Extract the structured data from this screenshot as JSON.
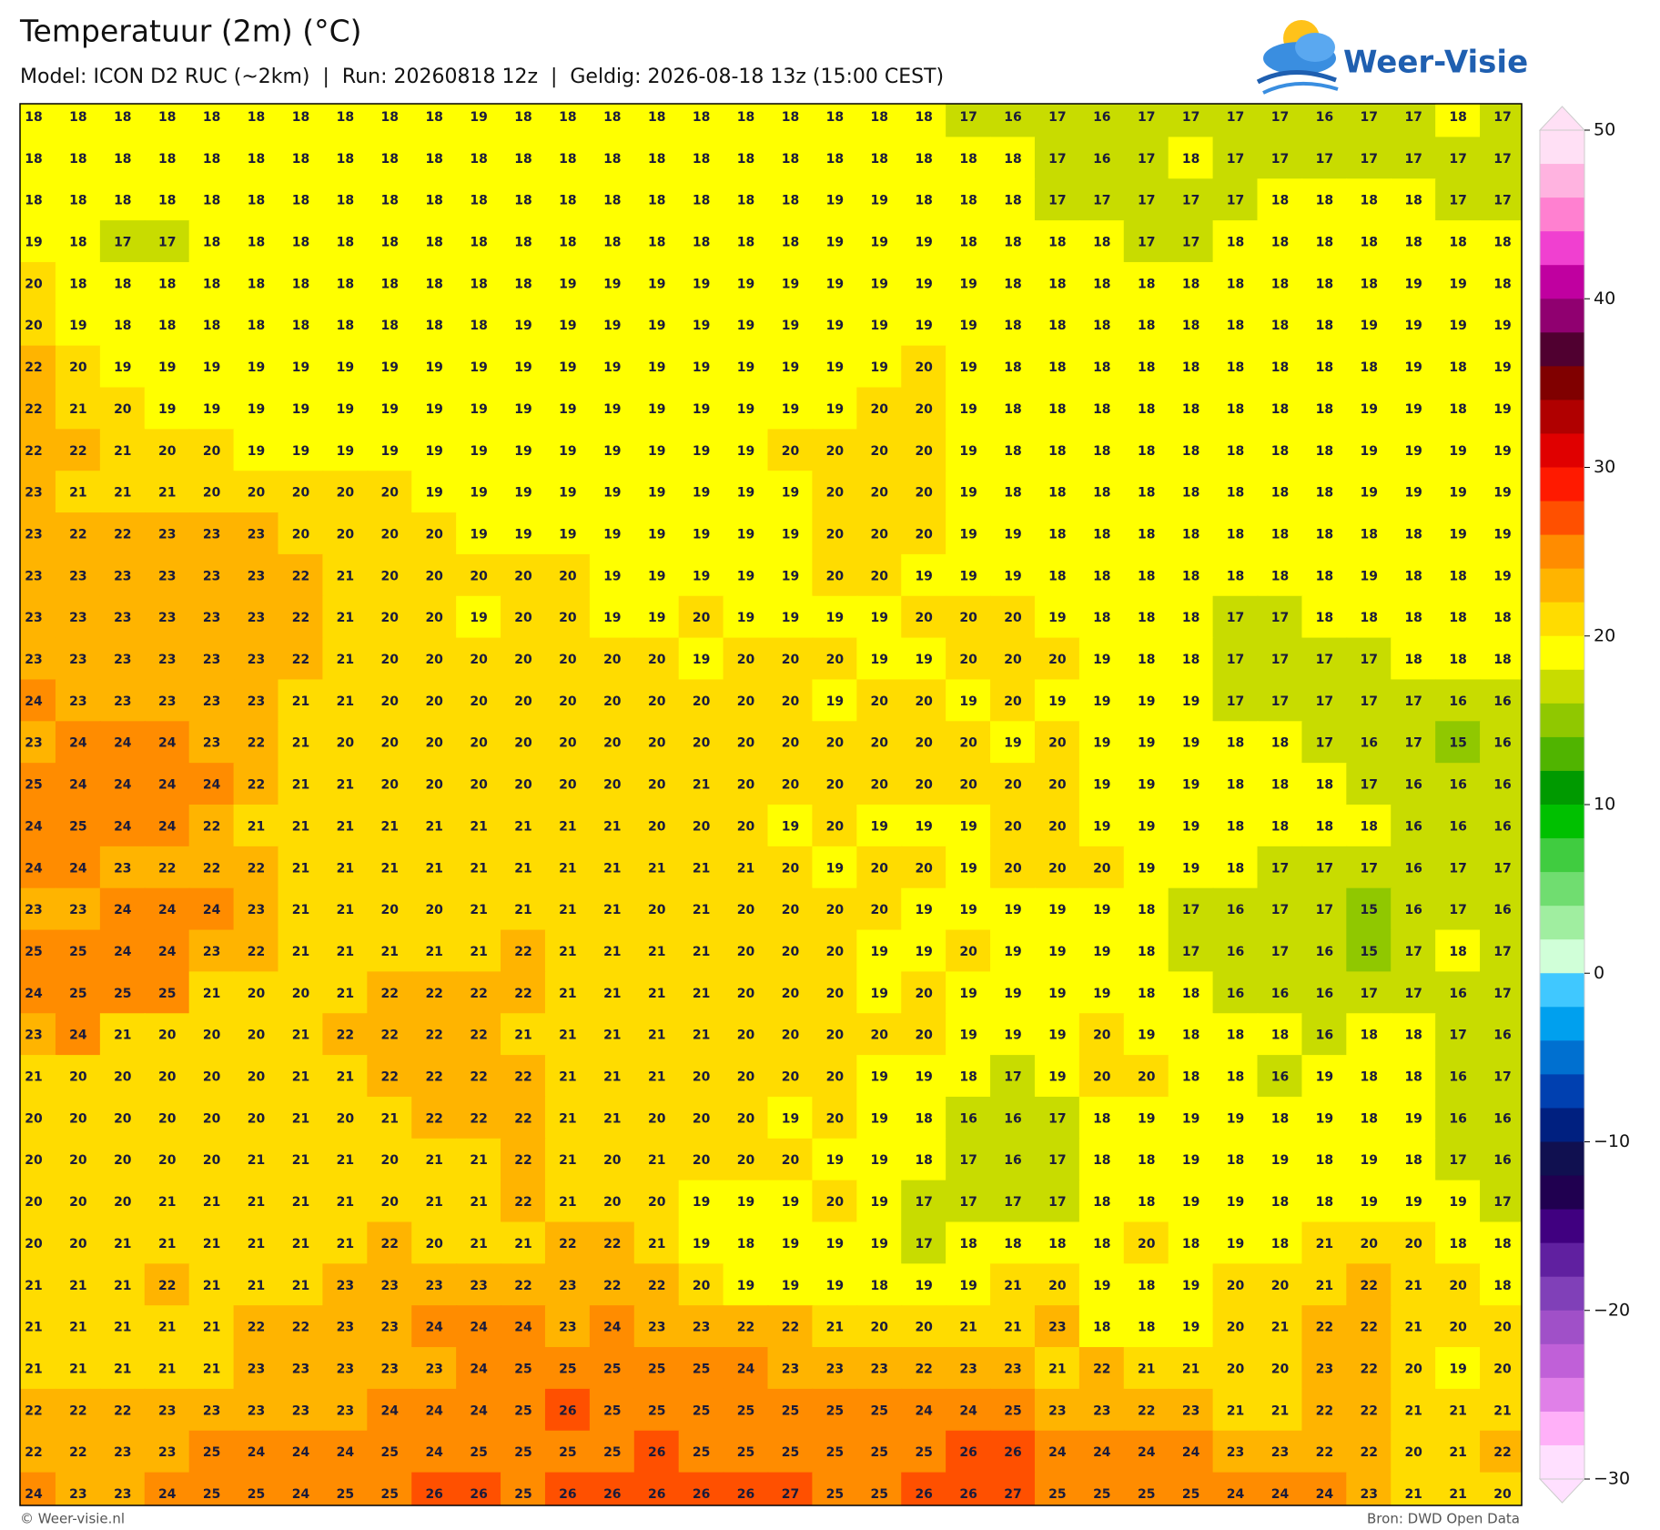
{
  "header": {
    "title": "Temperatuur (2m) (°C)",
    "subtitle": "Model: ICON D2 RUC (~2km)  |  Run: 20260818 12z  |  Geldig: 2026-08-18 13z (15:00 CEST)",
    "logo": "Weer-Visie"
  },
  "map": {
    "rows": [
      [
        18,
        18,
        18,
        18,
        18,
        18,
        18,
        18,
        18,
        18,
        19,
        18,
        18,
        18,
        18,
        18,
        18,
        18,
        18,
        18,
        18,
        17,
        16,
        17,
        16,
        17,
        17,
        17,
        17,
        16,
        17,
        17,
        18,
        17
      ],
      [
        18,
        18,
        18,
        18,
        18,
        18,
        18,
        18,
        18,
        18,
        18,
        18,
        18,
        18,
        18,
        18,
        18,
        18,
        18,
        18,
        18,
        18,
        18,
        17,
        16,
        17,
        18,
        17,
        17,
        17,
        17,
        17,
        17,
        17
      ],
      [
        18,
        18,
        18,
        18,
        18,
        18,
        18,
        18,
        18,
        18,
        18,
        18,
        18,
        18,
        18,
        18,
        18,
        18,
        19,
        19,
        18,
        18,
        18,
        17,
        17,
        17,
        17,
        17,
        18,
        18,
        18,
        18,
        17,
        17
      ],
      [
        19,
        18,
        17,
        17,
        18,
        18,
        18,
        18,
        18,
        18,
        18,
        18,
        18,
        18,
        18,
        18,
        18,
        18,
        19,
        19,
        19,
        18,
        18,
        18,
        18,
        17,
        17,
        18,
        18,
        18,
        18,
        18,
        18,
        18
      ],
      [
        20,
        18,
        18,
        18,
        18,
        18,
        18,
        18,
        18,
        18,
        18,
        18,
        19,
        19,
        19,
        19,
        19,
        19,
        19,
        19,
        19,
        19,
        18,
        18,
        18,
        18,
        18,
        18,
        18,
        18,
        18,
        19,
        19,
        18
      ],
      [
        20,
        19,
        18,
        18,
        18,
        18,
        18,
        18,
        18,
        18,
        18,
        19,
        19,
        19,
        19,
        19,
        19,
        19,
        19,
        19,
        19,
        19,
        18,
        18,
        18,
        18,
        18,
        18,
        18,
        18,
        19,
        19,
        19,
        19
      ],
      [
        22,
        20,
        19,
        19,
        19,
        19,
        19,
        19,
        19,
        19,
        19,
        19,
        19,
        19,
        19,
        19,
        19,
        19,
        19,
        19,
        20,
        19,
        18,
        18,
        18,
        18,
        18,
        18,
        18,
        18,
        18,
        19,
        18,
        19
      ],
      [
        22,
        21,
        20,
        19,
        19,
        19,
        19,
        19,
        19,
        19,
        19,
        19,
        19,
        19,
        19,
        19,
        19,
        19,
        19,
        20,
        20,
        19,
        18,
        18,
        18,
        18,
        18,
        18,
        18,
        18,
        19,
        19,
        18,
        19
      ],
      [
        22,
        22,
        21,
        20,
        20,
        19,
        19,
        19,
        19,
        19,
        19,
        19,
        19,
        19,
        19,
        19,
        19,
        20,
        20,
        20,
        20,
        19,
        18,
        18,
        18,
        18,
        18,
        18,
        18,
        18,
        19,
        19,
        19,
        19
      ],
      [
        23,
        21,
        21,
        21,
        20,
        20,
        20,
        20,
        20,
        19,
        19,
        19,
        19,
        19,
        19,
        19,
        19,
        19,
        20,
        20,
        20,
        19,
        18,
        18,
        18,
        18,
        18,
        18,
        18,
        18,
        19,
        19,
        19,
        19
      ],
      [
        23,
        22,
        22,
        23,
        23,
        23,
        20,
        20,
        20,
        20,
        19,
        19,
        19,
        19,
        19,
        19,
        19,
        19,
        20,
        20,
        20,
        19,
        19,
        18,
        18,
        18,
        18,
        18,
        18,
        18,
        18,
        18,
        19,
        19
      ],
      [
        23,
        23,
        23,
        23,
        23,
        23,
        22,
        21,
        20,
        20,
        20,
        20,
        20,
        19,
        19,
        19,
        19,
        19,
        20,
        20,
        19,
        19,
        19,
        18,
        18,
        18,
        18,
        18,
        18,
        18,
        19,
        18,
        18,
        19
      ],
      [
        23,
        23,
        23,
        23,
        23,
        23,
        22,
        21,
        20,
        20,
        19,
        20,
        20,
        19,
        19,
        20,
        19,
        19,
        19,
        19,
        20,
        20,
        20,
        19,
        18,
        18,
        18,
        17,
        17,
        18,
        18,
        18,
        18,
        18
      ],
      [
        23,
        23,
        23,
        23,
        23,
        23,
        22,
        21,
        20,
        20,
        20,
        20,
        20,
        20,
        20,
        19,
        20,
        20,
        20,
        19,
        19,
        20,
        20,
        20,
        19,
        18,
        18,
        17,
        17,
        17,
        17,
        18,
        18,
        18
      ],
      [
        24,
        23,
        23,
        23,
        23,
        23,
        21,
        21,
        20,
        20,
        20,
        20,
        20,
        20,
        20,
        20,
        20,
        20,
        19,
        20,
        20,
        19,
        20,
        19,
        19,
        19,
        19,
        17,
        17,
        17,
        17,
        17,
        16,
        16
      ],
      [
        23,
        24,
        24,
        24,
        23,
        22,
        21,
        20,
        20,
        20,
        20,
        20,
        20,
        20,
        20,
        20,
        20,
        20,
        20,
        20,
        20,
        20,
        19,
        20,
        19,
        19,
        19,
        18,
        18,
        17,
        16,
        17,
        15,
        16
      ],
      [
        25,
        24,
        24,
        24,
        24,
        22,
        21,
        21,
        20,
        20,
        20,
        20,
        20,
        20,
        20,
        21,
        20,
        20,
        20,
        20,
        20,
        20,
        20,
        20,
        19,
        19,
        19,
        18,
        18,
        18,
        17,
        16,
        16,
        16
      ],
      [
        24,
        25,
        24,
        24,
        22,
        21,
        21,
        21,
        21,
        21,
        21,
        21,
        21,
        21,
        20,
        20,
        20,
        19,
        20,
        19,
        19,
        19,
        20,
        20,
        19,
        19,
        19,
        18,
        18,
        18,
        18,
        16,
        16,
        16
      ],
      [
        24,
        24,
        23,
        22,
        22,
        22,
        21,
        21,
        21,
        21,
        21,
        21,
        21,
        21,
        21,
        21,
        21,
        20,
        19,
        20,
        20,
        19,
        20,
        20,
        20,
        19,
        19,
        18,
        17,
        17,
        17,
        16,
        17,
        17
      ],
      [
        23,
        23,
        24,
        24,
        24,
        23,
        21,
        21,
        20,
        20,
        21,
        21,
        21,
        21,
        20,
        21,
        20,
        20,
        20,
        20,
        19,
        19,
        19,
        19,
        19,
        18,
        17,
        16,
        17,
        17,
        15,
        16,
        17,
        16
      ],
      [
        25,
        25,
        24,
        24,
        23,
        22,
        21,
        21,
        21,
        21,
        21,
        22,
        21,
        21,
        21,
        21,
        20,
        20,
        20,
        19,
        19,
        20,
        19,
        19,
        19,
        18,
        17,
        16,
        17,
        16,
        15,
        17,
        18,
        17
      ],
      [
        24,
        25,
        25,
        25,
        21,
        20,
        20,
        21,
        22,
        22,
        22,
        22,
        21,
        21,
        21,
        21,
        20,
        20,
        20,
        19,
        20,
        19,
        19,
        19,
        19,
        18,
        18,
        16,
        16,
        16,
        17,
        17,
        16,
        17
      ],
      [
        23,
        24,
        21,
        20,
        20,
        20,
        21,
        22,
        22,
        22,
        22,
        21,
        21,
        21,
        21,
        21,
        20,
        20,
        20,
        20,
        20,
        19,
        19,
        19,
        20,
        19,
        18,
        18,
        18,
        16,
        18,
        18,
        17,
        16
      ],
      [
        21,
        20,
        20,
        20,
        20,
        20,
        21,
        21,
        22,
        22,
        22,
        22,
        21,
        21,
        21,
        20,
        20,
        20,
        20,
        19,
        19,
        18,
        17,
        19,
        20,
        20,
        18,
        18,
        16,
        19,
        18,
        18,
        16,
        17
      ],
      [
        20,
        20,
        20,
        20,
        20,
        20,
        21,
        20,
        21,
        22,
        22,
        22,
        21,
        21,
        20,
        20,
        20,
        19,
        20,
        19,
        18,
        16,
        16,
        17,
        18,
        19,
        19,
        19,
        18,
        19,
        18,
        19,
        16,
        16
      ],
      [
        20,
        20,
        20,
        20,
        20,
        21,
        21,
        21,
        20,
        21,
        21,
        22,
        21,
        20,
        21,
        20,
        20,
        20,
        19,
        19,
        18,
        17,
        16,
        17,
        18,
        18,
        19,
        18,
        19,
        18,
        19,
        18,
        17,
        16
      ],
      [
        20,
        20,
        20,
        21,
        21,
        21,
        21,
        21,
        20,
        21,
        21,
        22,
        21,
        20,
        20,
        19,
        19,
        19,
        20,
        19,
        17,
        17,
        17,
        17,
        18,
        18,
        19,
        19,
        18,
        18,
        19,
        19,
        19,
        17
      ],
      [
        20,
        20,
        21,
        21,
        21,
        21,
        21,
        21,
        22,
        20,
        21,
        21,
        22,
        22,
        21,
        19,
        18,
        19,
        19,
        19,
        17,
        18,
        18,
        18,
        18,
        20,
        18,
        19,
        18,
        21,
        20,
        20,
        18,
        18
      ],
      [
        21,
        21,
        21,
        22,
        21,
        21,
        21,
        23,
        23,
        23,
        23,
        22,
        23,
        22,
        22,
        20,
        19,
        19,
        19,
        18,
        19,
        19,
        21,
        20,
        19,
        18,
        19,
        20,
        20,
        21,
        22,
        21,
        20,
        18
      ],
      [
        21,
        21,
        21,
        21,
        21,
        22,
        22,
        23,
        23,
        24,
        24,
        24,
        23,
        24,
        23,
        23,
        22,
        22,
        21,
        20,
        20,
        21,
        21,
        23,
        18,
        18,
        19,
        20,
        21,
        22,
        22,
        21,
        20,
        20
      ],
      [
        21,
        21,
        21,
        21,
        21,
        23,
        23,
        23,
        23,
        23,
        24,
        25,
        25,
        25,
        25,
        25,
        24,
        23,
        23,
        23,
        22,
        23,
        23,
        21,
        22,
        21,
        21,
        20,
        20,
        23,
        22,
        20,
        19,
        20
      ],
      [
        22,
        22,
        22,
        23,
        23,
        23,
        23,
        23,
        24,
        24,
        24,
        25,
        26,
        25,
        25,
        25,
        25,
        25,
        25,
        25,
        24,
        24,
        25,
        23,
        23,
        22,
        23,
        21,
        21,
        22,
        22,
        21,
        21,
        21
      ],
      [
        22,
        22,
        23,
        23,
        25,
        24,
        24,
        24,
        25,
        24,
        25,
        25,
        25,
        25,
        26,
        25,
        25,
        25,
        25,
        25,
        25,
        26,
        26,
        24,
        24,
        24,
        24,
        23,
        23,
        22,
        22,
        20,
        21,
        22
      ],
      [
        24,
        23,
        23,
        24,
        25,
        25,
        24,
        25,
        25,
        26,
        26,
        25,
        26,
        26,
        26,
        26,
        26,
        27,
        25,
        25,
        26,
        26,
        27,
        25,
        25,
        25,
        25,
        24,
        24,
        24,
        23,
        21,
        21,
        20
      ]
    ]
  },
  "colorbar": {
    "lim": [
      -30,
      50
    ],
    "ticks": [
      50,
      40,
      30,
      20,
      10,
      0,
      {
        "value": -10,
        "label": "−10"
      },
      {
        "value": -20,
        "label": "−20"
      },
      {
        "value": -30,
        "label": "−30"
      }
    ],
    "colors": [
      "#ffe0f5",
      "#ffb3e0",
      "#ff80d0",
      "#f040d0",
      "#c000a0",
      "#900070",
      "#500030",
      "#800000",
      "#b00000",
      "#e00000",
      "#ff1a00",
      "#ff5000",
      "#ff8c00",
      "#ffb400",
      "#ffdc00",
      "#ffff00",
      "#c8dc00",
      "#90c800",
      "#50b400",
      "#009a00",
      "#00c000",
      "#40cc40",
      "#70dd70",
      "#a0eea0",
      "#d0ffd8",
      "#40c8ff",
      "#00a0ee",
      "#0070d0",
      "#0040b0",
      "#002080",
      "#101050",
      "#200050",
      "#400080",
      "#6020a0",
      "#8040b8",
      "#a050c8",
      "#c060d8",
      "#e080e8",
      "#ffb0f8",
      "#ffe0ff"
    ]
  },
  "footer": {
    "left": "© Weer-visie.nl",
    "right": "Bron: DWD Open Data"
  }
}
